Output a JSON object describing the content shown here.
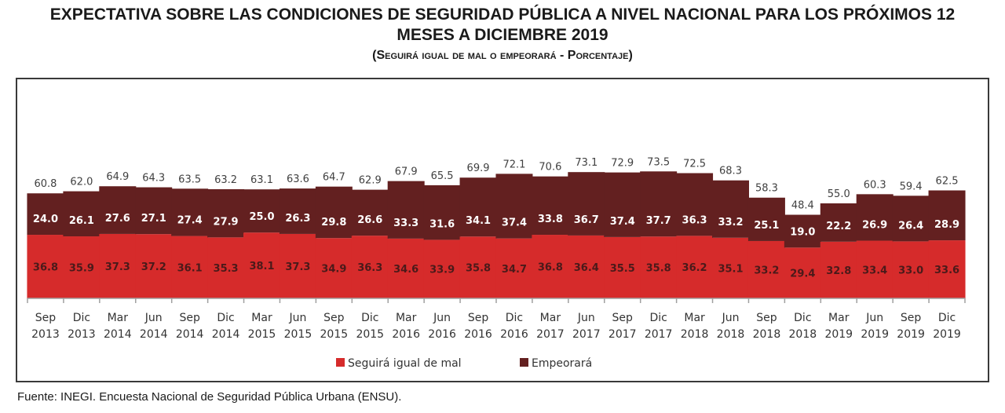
{
  "header": {
    "title_line1": "EXPECTATIVA SOBRE LAS CONDICIONES DE SEGURIDAD PÚBLICA A NIVEL NACIONAL PARA LOS PRÓXIMOS 12",
    "title_line2": "MESES  A DICIEMBRE 2019",
    "subtitle": "(Seguirá igual de mal o empeorará - Porcentaje)"
  },
  "footer": {
    "source": "Fuente: INEGI. Encuesta Nacional de Seguridad Pública Urbana (ENSU)."
  },
  "colors": {
    "seguira": "#d62b2b",
    "empeorara": "#632020"
  },
  "chart_data": {
    "type": "bar",
    "stacked": true,
    "title": "EXPECTATIVA SOBRE LAS CONDICIONES DE SEGURIDAD PÚBLICA A NIVEL NACIONAL PARA LOS PRÓXIMOS 12 MESES A DICIEMBRE 2019",
    "subtitle": "(Seguirá igual de mal o empeorará - Porcentaje)",
    "xlabel": "",
    "ylabel": "",
    "ylim": [
      0,
      80
    ],
    "grid": false,
    "legend_position": "bottom",
    "categories": [
      [
        "Sep",
        "2013"
      ],
      [
        "Dic",
        "2013"
      ],
      [
        "Mar",
        "2014"
      ],
      [
        "Jun",
        "2014"
      ],
      [
        "Sep",
        "2014"
      ],
      [
        "Dic",
        "2014"
      ],
      [
        "Mar",
        "2015"
      ],
      [
        "Jun",
        "2015"
      ],
      [
        "Sep",
        "2015"
      ],
      [
        "Dic",
        "2015"
      ],
      [
        "Mar",
        "2016"
      ],
      [
        "Jun",
        "2016"
      ],
      [
        "Sep",
        "2016"
      ],
      [
        "Dic",
        "2016"
      ],
      [
        "Mar",
        "2017"
      ],
      [
        "Jun",
        "2017"
      ],
      [
        "Sep",
        "2017"
      ],
      [
        "Dic",
        "2017"
      ],
      [
        "Mar",
        "2018"
      ],
      [
        "Jun",
        "2018"
      ],
      [
        "Sep",
        "2018"
      ],
      [
        "Dic",
        "2018"
      ],
      [
        "Mar",
        "2019"
      ],
      [
        "Jun",
        "2019"
      ],
      [
        "Sep",
        "2019"
      ],
      [
        "Dic",
        "2019"
      ]
    ],
    "series": [
      {
        "name": "Seguirá igual de mal",
        "values": [
          36.8,
          35.9,
          37.3,
          37.2,
          36.1,
          35.3,
          38.1,
          37.3,
          34.9,
          36.3,
          34.6,
          33.9,
          35.8,
          34.7,
          36.8,
          36.4,
          35.5,
          35.8,
          36.2,
          35.1,
          33.2,
          29.4,
          32.8,
          33.4,
          33.0,
          33.6
        ]
      },
      {
        "name": "Empeorará",
        "values": [
          24.0,
          26.1,
          27.6,
          27.1,
          27.4,
          27.9,
          25.0,
          26.3,
          29.8,
          26.6,
          33.3,
          31.6,
          34.1,
          37.4,
          33.8,
          36.7,
          37.4,
          37.7,
          36.3,
          33.2,
          25.1,
          19.0,
          22.2,
          26.9,
          26.4,
          28.9
        ]
      }
    ],
    "totals": [
      60.8,
      62.0,
      64.9,
      64.3,
      63.5,
      63.2,
      63.1,
      63.6,
      64.7,
      62.9,
      67.9,
      65.5,
      69.9,
      72.1,
      70.6,
      73.1,
      72.9,
      73.5,
      72.5,
      68.3,
      58.3,
      48.4,
      55.0,
      60.3,
      59.4,
      62.5
    ]
  }
}
